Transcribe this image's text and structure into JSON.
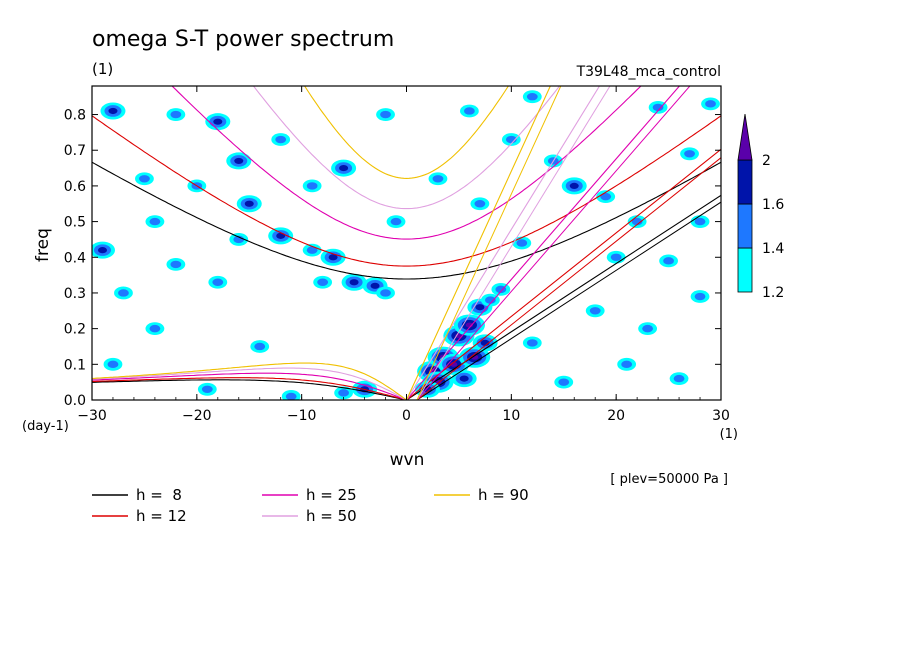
{
  "chart_data": {
    "type": "heatmap",
    "title": "omega S-T power spectrum",
    "units_label": "(1)",
    "run_label": "T39L48_mca_control",
    "xlabel": "wvn",
    "ylabel": "freq",
    "x_unit_label": "(1)",
    "y_unit_label": "(day-1)",
    "level_note": "[ plev=50000 Pa ]",
    "xlim": [
      -30,
      30
    ],
    "ylim": [
      0,
      0.88
    ],
    "x_ticks": [
      -30,
      -20,
      -10,
      0,
      10,
      20,
      30
    ],
    "x_tick_labels": [
      "−30",
      "−20",
      "−10",
      "0",
      "10",
      "20",
      "30"
    ],
    "y_ticks": [
      0.0,
      0.1,
      0.2,
      0.3,
      0.4,
      0.5,
      0.6,
      0.7,
      0.8
    ],
    "y_tick_labels": [
      "0.0",
      "0.1",
      "0.2",
      "0.3",
      "0.4",
      "0.5",
      "0.6",
      "0.7",
      "0.8"
    ],
    "colorbar": {
      "levels": [
        1.2,
        1.4,
        1.6,
        2
      ],
      "labels": [
        "1.2",
        "1.4",
        "1.6",
        "2"
      ],
      "colors": [
        "#00ffff",
        "#1e78ff",
        "#0014aa",
        "#5a00aa"
      ]
    },
    "dispersion_curves": [
      {
        "name": "h =  8",
        "h": 8,
        "color": "#000000"
      },
      {
        "name": "h = 12",
        "h": 12,
        "color": "#dd0000"
      },
      {
        "name": "h = 25",
        "h": 25,
        "color": "#e000b0"
      },
      {
        "name": "h = 50",
        "h": 50,
        "color": "#e0a0e0"
      },
      {
        "name": "h = 90",
        "h": 90,
        "color": "#f0c000"
      }
    ],
    "blobs": [
      {
        "k": 2.5,
        "f": 0.08,
        "level": 3
      },
      {
        "k": 3.5,
        "f": 0.12,
        "level": 3
      },
      {
        "k": 5,
        "f": 0.18,
        "level": 3
      },
      {
        "k": 6,
        "f": 0.21,
        "level": 3
      },
      {
        "k": 4.5,
        "f": 0.1,
        "level": 3
      },
      {
        "k": 6.5,
        "f": 0.12,
        "level": 3
      },
      {
        "k": 3,
        "f": 0.05,
        "level": 3
      },
      {
        "k": 7,
        "f": 0.26,
        "level": 2
      },
      {
        "k": 8,
        "f": 0.28,
        "level": 1
      },
      {
        "k": 9,
        "f": 0.31,
        "level": 1
      },
      {
        "k": 2,
        "f": 0.03,
        "level": 2
      },
      {
        "k": 5.5,
        "f": 0.06,
        "level": 2
      },
      {
        "k": 7.5,
        "f": 0.16,
        "level": 2
      },
      {
        "k": -28,
        "f": 0.81,
        "level": 2
      },
      {
        "k": -22,
        "f": 0.8,
        "level": 1
      },
      {
        "k": -18,
        "f": 0.78,
        "level": 2
      },
      {
        "k": -16,
        "f": 0.67,
        "level": 2
      },
      {
        "k": -15,
        "f": 0.55,
        "level": 2
      },
      {
        "k": -12,
        "f": 0.46,
        "level": 2
      },
      {
        "k": -9,
        "f": 0.42,
        "level": 1
      },
      {
        "k": -7,
        "f": 0.4,
        "level": 2
      },
      {
        "k": -5,
        "f": 0.33,
        "level": 2
      },
      {
        "k": -3,
        "f": 0.32,
        "level": 2
      },
      {
        "k": -2,
        "f": 0.3,
        "level": 1
      },
      {
        "k": -8,
        "f": 0.33,
        "level": 1
      },
      {
        "k": -29,
        "f": 0.42,
        "level": 2
      },
      {
        "k": -27,
        "f": 0.3,
        "level": 1
      },
      {
        "k": -24,
        "f": 0.5,
        "level": 1
      },
      {
        "k": -20,
        "f": 0.6,
        "level": 1
      },
      {
        "k": -25,
        "f": 0.62,
        "level": 1
      },
      {
        "k": -12,
        "f": 0.73,
        "level": 1
      },
      {
        "k": -9,
        "f": 0.6,
        "level": 1
      },
      {
        "k": -6,
        "f": 0.65,
        "level": 2
      },
      {
        "k": -1,
        "f": 0.5,
        "level": 1
      },
      {
        "k": -14,
        "f": 0.15,
        "level": 1
      },
      {
        "k": -24,
        "f": 0.2,
        "level": 1
      },
      {
        "k": -28,
        "f": 0.1,
        "level": 1
      },
      {
        "k": -4,
        "f": 0.03,
        "level": 2
      },
      {
        "k": -6,
        "f": 0.02,
        "level": 1
      },
      {
        "k": -11,
        "f": 0.01,
        "level": 1
      },
      {
        "k": -19,
        "f": 0.03,
        "level": 1
      },
      {
        "k": 16,
        "f": 0.6,
        "level": 2
      },
      {
        "k": 14,
        "f": 0.67,
        "level": 1
      },
      {
        "k": 19,
        "f": 0.57,
        "level": 1
      },
      {
        "k": 22,
        "f": 0.5,
        "level": 1
      },
      {
        "k": 25,
        "f": 0.39,
        "level": 1
      },
      {
        "k": 28,
        "f": 0.5,
        "level": 1
      },
      {
        "k": 27,
        "f": 0.69,
        "level": 1
      },
      {
        "k": 29,
        "f": 0.83,
        "level": 1
      },
      {
        "k": 10,
        "f": 0.73,
        "level": 1
      },
      {
        "k": 12,
        "f": 0.85,
        "level": 1
      },
      {
        "k": 24,
        "f": 0.82,
        "level": 1
      },
      {
        "k": 18,
        "f": 0.25,
        "level": 1
      },
      {
        "k": 21,
        "f": 0.1,
        "level": 1
      },
      {
        "k": 26,
        "f": 0.06,
        "level": 1
      },
      {
        "k": 15,
        "f": 0.05,
        "level": 1
      },
      {
        "k": 12,
        "f": 0.16,
        "level": 1
      },
      {
        "k": 23,
        "f": 0.2,
        "level": 1
      },
      {
        "k": 28,
        "f": 0.29,
        "level": 1
      },
      {
        "k": 20,
        "f": 0.4,
        "level": 1
      },
      {
        "k": 11,
        "f": 0.44,
        "level": 1
      },
      {
        "k": 7,
        "f": 0.55,
        "level": 1
      },
      {
        "k": 3,
        "f": 0.62,
        "level": 1
      },
      {
        "k": -18,
        "f": 0.33,
        "level": 1
      },
      {
        "k": -22,
        "f": 0.38,
        "level": 1
      },
      {
        "k": -16,
        "f": 0.45,
        "level": 1
      },
      {
        "k": -2,
        "f": 0.8,
        "level": 1
      },
      {
        "k": 6,
        "f": 0.81,
        "level": 1
      }
    ]
  }
}
